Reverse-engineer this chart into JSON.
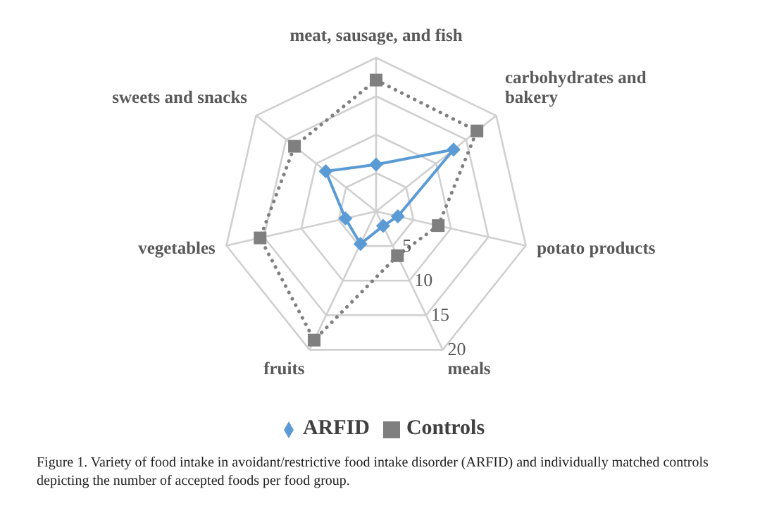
{
  "chart_data": {
    "type": "radar",
    "categories": [
      "meat, sausage, and fish",
      "carbohydrates and bakery",
      "potato products",
      "meals",
      "fruits",
      "vegetables",
      "sweets and snacks"
    ],
    "series": [
      {
        "name": "ARFID",
        "color": "#5b9bd5",
        "values": [
          6.1,
          12.9,
          2.9,
          2.1,
          4.7,
          4.1,
          8.4
        ],
        "marker": "diamond",
        "line_style": "solid"
      },
      {
        "name": "Controls",
        "color": "#7f7f7f",
        "values": [
          17.1,
          16.8,
          8.3,
          6.4,
          18.6,
          15.5,
          13.6
        ],
        "marker": "square",
        "line_style": "dotted"
      }
    ],
    "ylim": [
      0,
      20
    ],
    "yticks": [
      5,
      10,
      15,
      20
    ],
    "grid": true,
    "legend": "bottom",
    "annotations": [
      "Figure 1. Variety of food intake in avoidant/restrictive food intake disorder (ARFID) and individually matched controls depicting the number of accepted foods per food group."
    ]
  }
}
